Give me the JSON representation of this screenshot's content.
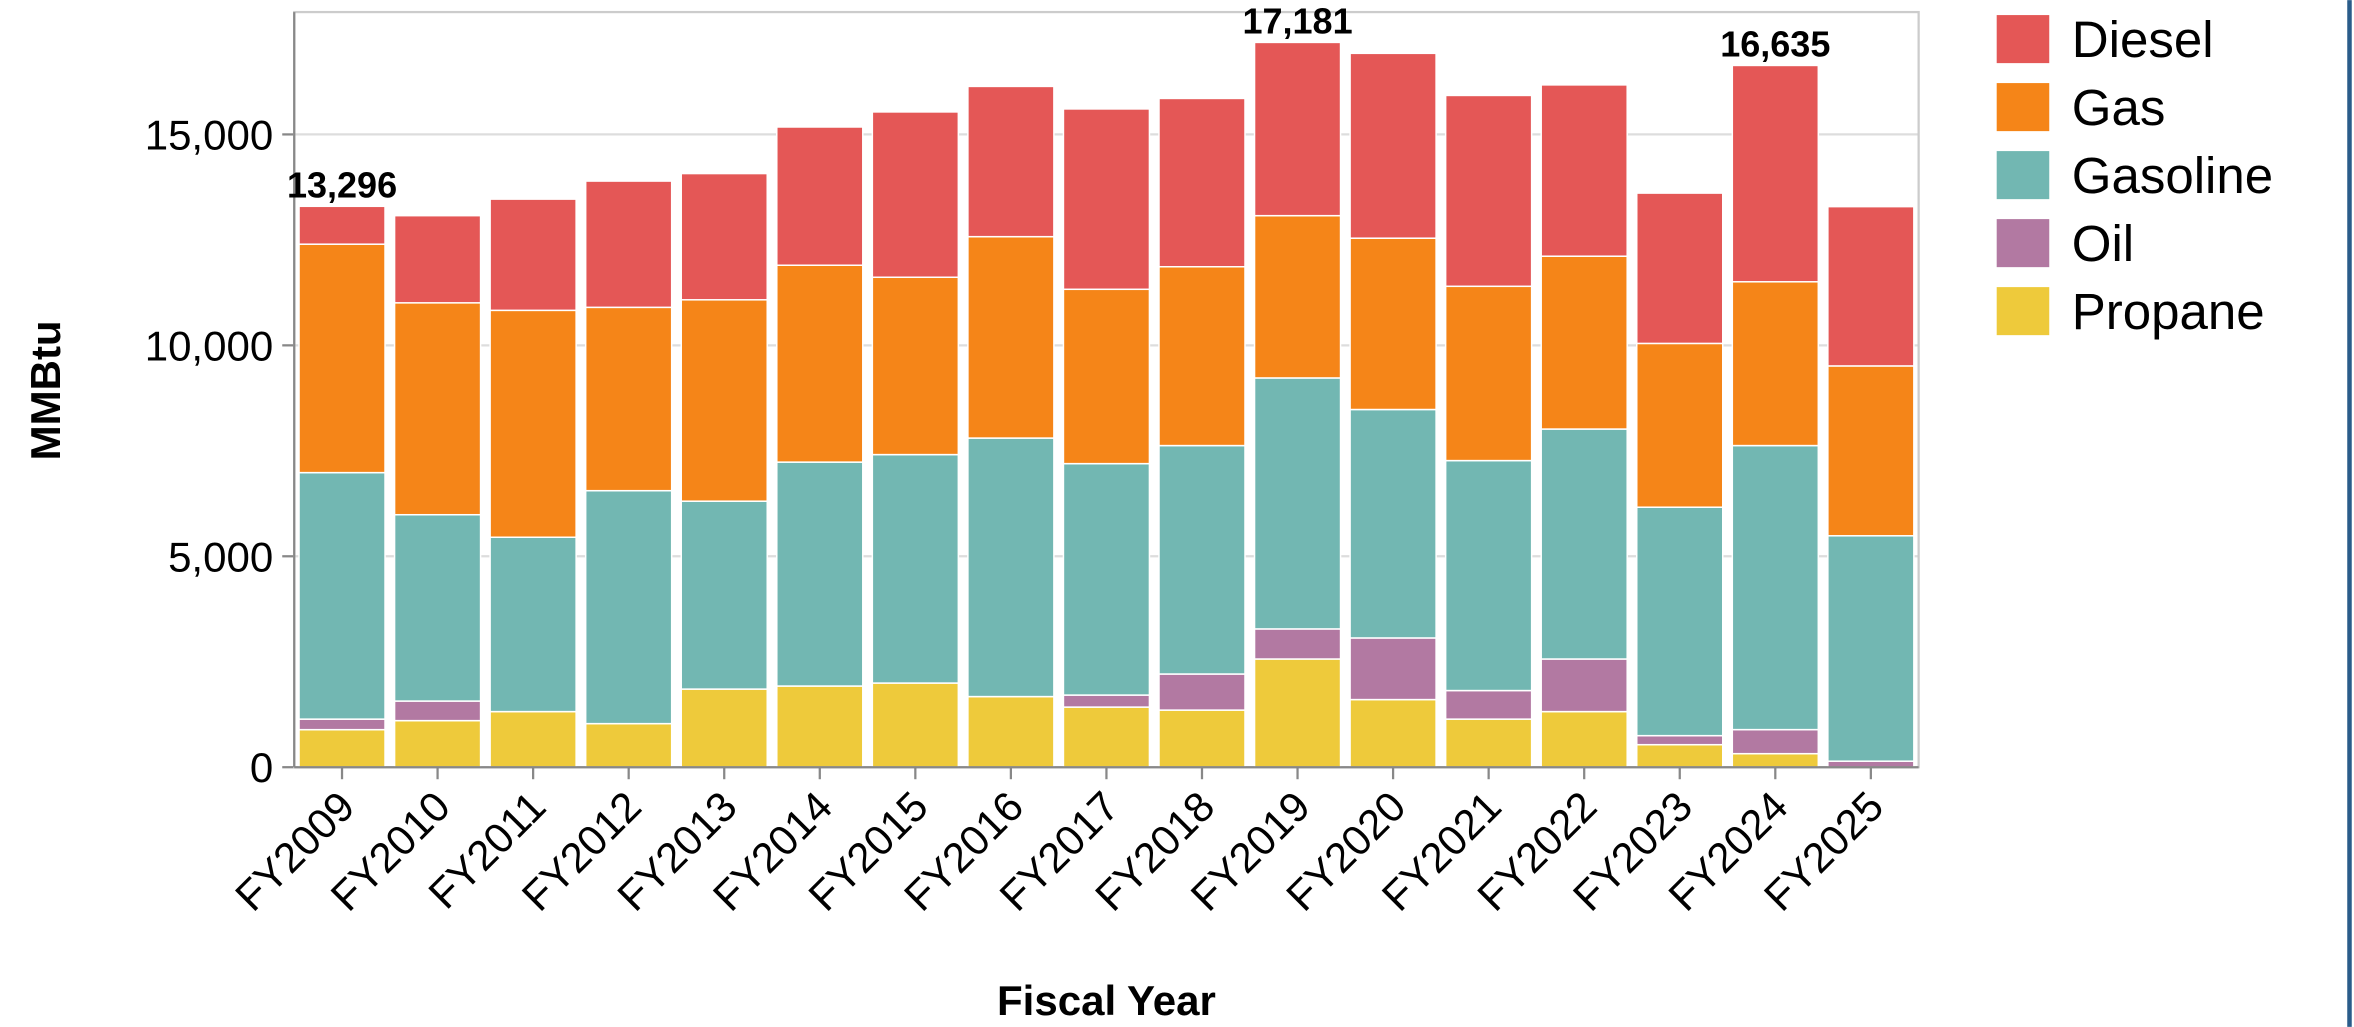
{
  "chart_data": {
    "type": "stacked_bar",
    "x_label": "Fiscal Year",
    "y_label": "MMBtu",
    "categories": [
      "FY2009",
      "FY2010",
      "FY2011",
      "FY2012",
      "FY2013",
      "FY2014",
      "FY2015",
      "FY2016",
      "FY2017",
      "FY2018",
      "FY2019",
      "FY2020",
      "FY2021",
      "FY2022",
      "FY2023",
      "FY2024",
      "FY2025"
    ],
    "series": [
      {
        "name": "Diesel",
        "color": "#e45756",
        "values": [
          898,
          2066,
          2636,
          2993,
          2992,
          3277,
          3919,
          3562,
          4275,
          3990,
          4107,
          4382,
          4524,
          4061,
          3563,
          5128,
          3776
        ]
      },
      {
        "name": "Gas",
        "color": "#f58518",
        "values": [
          5415,
          5023,
          5379,
          4346,
          4774,
          4667,
          4204,
          4774,
          4133,
          4239,
          3847,
          4061,
          4132,
          4097,
          3883,
          3883,
          4026
        ]
      },
      {
        "name": "Gasoline",
        "color": "#72b7b2",
        "values": [
          5843,
          4417,
          4133,
          5522,
          4454,
          5308,
          5415,
          6128,
          5486,
          5415,
          5949,
          5415,
          5451,
          5451,
          5415,
          6733,
          5343
        ]
      },
      {
        "name": "Oil",
        "color": "#b279a2",
        "values": [
          250,
          464,
          0,
          0,
          0,
          0,
          0,
          0,
          285,
          855,
          713,
          1461,
          677,
          1247,
          214,
          570,
          143
        ]
      },
      {
        "name": "Propane",
        "color": "#eeca3b",
        "values": [
          890,
          1104,
          1318,
          1033,
          1852,
          1924,
          1995,
          1674,
          1425,
          1354,
          2565,
          1603,
          1140,
          1318,
          534,
          321,
          0
        ]
      }
    ],
    "annotations": [
      {
        "x": "FY2009",
        "value": 13296,
        "label": "13,296"
      },
      {
        "x": "FY2019",
        "value": 17181,
        "label": "17,181"
      },
      {
        "x": "FY2024",
        "value": 16635,
        "label": "16,635"
      }
    ],
    "ylim": [
      0,
      17900
    ],
    "yticks": [
      0,
      {
        "value": 5000,
        "label": "5,000"
      },
      {
        "value": 10000,
        "label": "10,000"
      },
      {
        "value": 15000,
        "label": "15,000"
      }
    ],
    "grid": true,
    "legend": "right"
  }
}
